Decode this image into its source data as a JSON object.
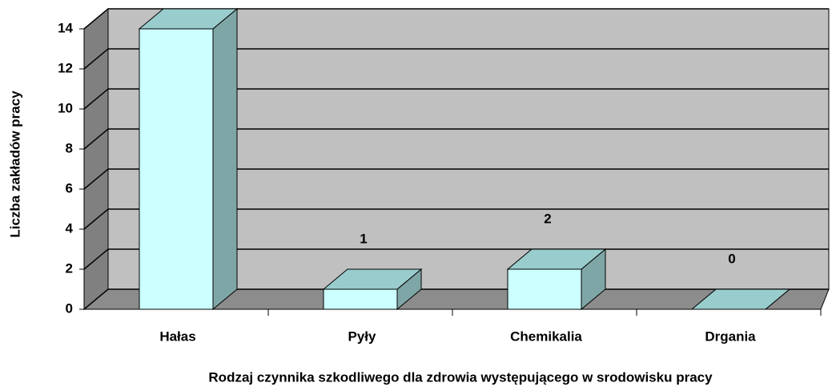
{
  "chart_data": {
    "type": "bar3d",
    "x_label": "Rodzaj czynnika szkodliwego dla zdrowia występującego w srodowisku pracy",
    "y_label": "Liczba zakładów pracy",
    "categories": [
      "Hałas",
      "Pyły",
      "Chemikalia",
      "Drgania"
    ],
    "values": [
      14,
      1,
      2,
      0
    ],
    "color": "#ccffff",
    "ylim": [
      0,
      14
    ],
    "yticks": [
      0,
      2,
      4,
      6,
      8,
      10,
      12,
      14
    ],
    "grid": true
  }
}
